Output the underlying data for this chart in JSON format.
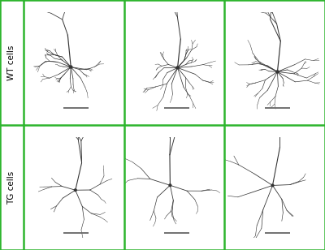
{
  "grid_rows": 2,
  "grid_cols": 3,
  "row_labels": [
    "WT cells",
    "TG cells"
  ],
  "border_color": "#2db52d",
  "border_lw": 1.8,
  "neuron_color": "#333333",
  "bg_color": "#ffffff",
  "label_fontsize": 7.5,
  "fig_width": 4.0,
  "fig_height": 3.08,
  "fig_dpi": 100,
  "scale_bar_color": "#666666",
  "scale_bar_lw": 1.3,
  "wt_seeds": [
    12,
    77,
    44
  ],
  "tg_seeds": [
    99,
    55,
    31
  ]
}
